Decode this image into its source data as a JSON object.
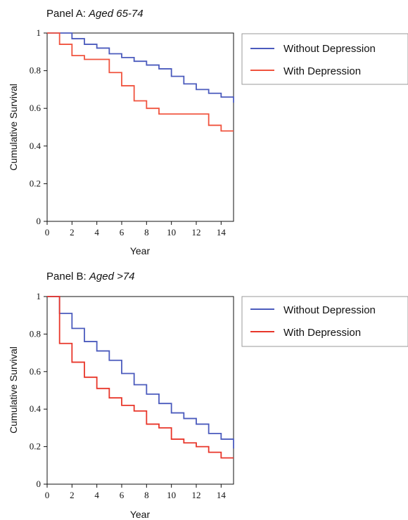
{
  "chart_data": [
    {
      "type": "line",
      "title_prefix": "Panel A: ",
      "title_italic": "Aged 65-74",
      "xlabel": "Year",
      "ylabel": "Cumulative Survival",
      "xlim": [
        0,
        15
      ],
      "ylim": [
        0,
        1
      ],
      "xticks": [
        "0",
        "2",
        "4",
        "6",
        "8",
        "10",
        "12",
        "14"
      ],
      "yticks": [
        "0",
        "0.2",
        "0.4",
        "0.6",
        "0.8",
        "1"
      ],
      "grid": false,
      "legend_position": "right",
      "step": true,
      "series": [
        {
          "name": "Without Depression",
          "color": "#4b5bbd",
          "x": [
            0,
            1,
            2,
            3,
            4,
            5,
            6,
            7,
            8,
            9,
            10,
            11,
            12,
            13,
            14,
            15
          ],
          "y": [
            1.0,
            1.0,
            0.97,
            0.94,
            0.92,
            0.89,
            0.87,
            0.85,
            0.83,
            0.81,
            0.77,
            0.73,
            0.7,
            0.68,
            0.66,
            0.63
          ]
        },
        {
          "name": "With Depression",
          "color": "#f0533e",
          "x": [
            0,
            1,
            2,
            3,
            5,
            6,
            7,
            8,
            9,
            13,
            14,
            15
          ],
          "y": [
            1.0,
            0.94,
            0.88,
            0.86,
            0.79,
            0.72,
            0.64,
            0.6,
            0.57,
            0.51,
            0.48,
            0.48
          ]
        }
      ]
    },
    {
      "type": "line",
      "title_prefix": "Panel B: ",
      "title_italic": "Aged >74",
      "xlabel": "Year",
      "ylabel": "Cumulative Survival",
      "xlim": [
        0,
        15
      ],
      "ylim": [
        0,
        1
      ],
      "xticks": [
        "0",
        "2",
        "4",
        "6",
        "8",
        "10",
        "12",
        "14"
      ],
      "yticks": [
        "0",
        "0.2",
        "0.4",
        "0.6",
        "0.8",
        "1"
      ],
      "grid": false,
      "legend_position": "right",
      "step": true,
      "series": [
        {
          "name": "Without Depression",
          "color": "#4b5bbd",
          "x": [
            0,
            1,
            2,
            3,
            4,
            5,
            6,
            7,
            8,
            9,
            10,
            11,
            12,
            13,
            14,
            15
          ],
          "y": [
            1.0,
            0.91,
            0.83,
            0.76,
            0.71,
            0.66,
            0.59,
            0.53,
            0.48,
            0.43,
            0.38,
            0.35,
            0.32,
            0.27,
            0.24,
            0.19
          ]
        },
        {
          "name": "With Depression",
          "color": "#e8362a",
          "x": [
            0,
            1,
            2,
            3,
            4,
            5,
            6,
            7,
            8,
            9,
            10,
            11,
            12,
            13,
            14,
            15
          ],
          "y": [
            1.0,
            0.75,
            0.65,
            0.57,
            0.51,
            0.46,
            0.42,
            0.39,
            0.32,
            0.3,
            0.24,
            0.22,
            0.2,
            0.17,
            0.14,
            0.14
          ]
        }
      ]
    }
  ]
}
